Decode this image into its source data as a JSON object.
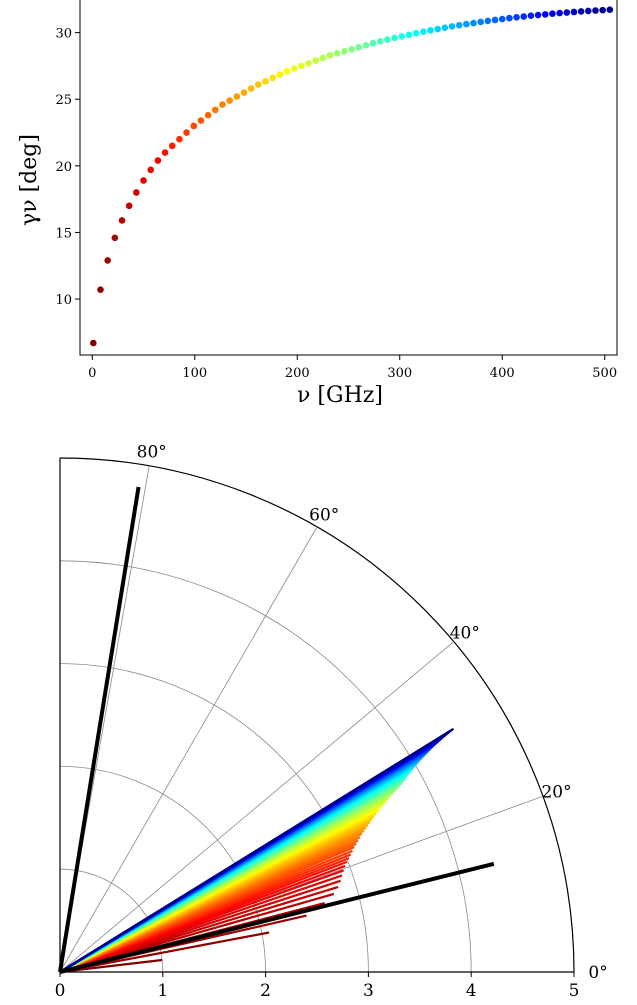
{
  "chart_data": [
    {
      "type": "scatter",
      "title": "",
      "xlabel": "ν      [GHz]",
      "ylabel": "γν  [deg]",
      "xlim": [
        -12,
        512
      ],
      "ylim": [
        5.8,
        32.6
      ],
      "xticks": [
        0,
        100,
        200,
        300,
        400,
        500
      ],
      "yticks": [
        10,
        15,
        20,
        25,
        30
      ],
      "colormap": "jet (reversed: low ν red, high ν blue)",
      "x": [
        1,
        8,
        15,
        22,
        29,
        36,
        43,
        50,
        57,
        64,
        71,
        78,
        85,
        92,
        99,
        106,
        113,
        120,
        127,
        134,
        141,
        148,
        155,
        162,
        169,
        176,
        183,
        190,
        197,
        204,
        211,
        218,
        225,
        232,
        239,
        246,
        253,
        260,
        267,
        274,
        281,
        288,
        295,
        302,
        309,
        316,
        323,
        330,
        337,
        344,
        351,
        358,
        365,
        372,
        379,
        386,
        393,
        400,
        407,
        414,
        421,
        428,
        435,
        442,
        449,
        456,
        463,
        470,
        477,
        484,
        491,
        498,
        505
      ],
      "y": [
        6.7,
        10.7,
        12.9,
        14.6,
        15.9,
        17.0,
        18.0,
        18.9,
        19.7,
        20.4,
        21.0,
        21.5,
        22.0,
        22.5,
        23.0,
        23.4,
        23.8,
        24.2,
        24.6,
        24.9,
        25.2,
        25.5,
        25.8,
        26.1,
        26.35,
        26.6,
        26.85,
        27.1,
        27.3,
        27.5,
        27.7,
        27.9,
        28.1,
        28.3,
        28.45,
        28.6,
        28.75,
        28.9,
        29.05,
        29.2,
        29.35,
        29.48,
        29.6,
        29.72,
        29.84,
        29.96,
        30.07,
        30.17,
        30.27,
        30.37,
        30.47,
        30.56,
        30.64,
        30.72,
        30.8,
        30.88,
        30.95,
        31.02,
        31.09,
        31.15,
        31.21,
        31.27,
        31.32,
        31.37,
        31.42,
        31.47,
        31.51,
        31.55,
        31.59,
        31.63,
        31.66,
        31.69,
        31.72
      ]
    },
    {
      "type": "polar",
      "title": "",
      "rlim": [
        0,
        5
      ],
      "rticks": [
        0,
        1,
        2,
        3,
        4,
        5
      ],
      "thetalim_deg": [
        0,
        90
      ],
      "thetaticks_deg": [
        0,
        20,
        40,
        60,
        80
      ],
      "rticks_labels": [
        "0",
        "1",
        "2",
        "3",
        "4",
        "5"
      ],
      "thetaticks_labels": [
        "0°",
        "20°",
        "40°",
        "60°",
        "80°"
      ],
      "reference_lines": [
        {
          "theta_deg": 14.0,
          "r": 4.35,
          "color": "#000000"
        },
        {
          "theta_deg": 80.8,
          "r": 4.78,
          "color": "#000000"
        }
      ],
      "colormap": "jet (reversed: low ν red, high ν blue)",
      "rays_theta_deg": [
        6.7,
        10.7,
        12.9,
        14.6,
        15.9,
        17.0,
        18.0,
        18.9,
        19.7,
        20.4,
        21.0,
        21.5,
        22.0,
        22.5,
        23.0,
        23.4,
        23.8,
        24.2,
        24.6,
        24.9,
        25.2,
        25.5,
        25.8,
        26.1,
        26.35,
        26.6,
        26.85,
        27.1,
        27.3,
        27.5,
        27.7,
        27.9,
        28.1,
        28.3,
        28.45,
        28.6,
        28.75,
        28.9,
        29.05,
        29.2,
        29.35,
        29.48,
        29.6,
        29.72,
        29.84,
        29.96,
        30.07,
        30.17,
        30.27,
        30.37,
        30.47,
        30.56,
        30.64,
        30.72,
        30.8,
        30.88,
        30.95,
        31.02,
        31.09,
        31.15,
        31.21,
        31.27,
        31.32,
        31.37,
        31.42,
        31.47,
        31.51,
        31.55,
        31.59,
        31.63,
        31.66,
        31.69,
        31.72
      ],
      "rays_r": [
        1.0,
        2.07,
        2.46,
        2.66,
        2.77,
        2.83,
        2.87,
        2.9,
        2.93,
        2.96,
        2.99,
        3.02,
        3.05,
        3.08,
        3.11,
        3.14,
        3.17,
        3.2,
        3.23,
        3.26,
        3.29,
        3.32,
        3.35,
        3.38,
        3.41,
        3.44,
        3.47,
        3.5,
        3.53,
        3.56,
        3.59,
        3.62,
        3.65,
        3.68,
        3.71,
        3.74,
        3.77,
        3.8,
        3.82,
        3.84,
        3.86,
        3.88,
        3.9,
        3.92,
        3.94,
        3.96,
        3.98,
        4.0,
        4.02,
        4.04,
        4.06,
        4.08,
        4.1,
        4.12,
        4.14,
        4.16,
        4.18,
        4.2,
        4.22,
        4.24,
        4.26,
        4.28,
        4.3,
        4.32,
        4.34,
        4.36,
        4.38,
        4.4,
        4.42,
        4.44,
        4.46,
        4.48,
        4.5
      ]
    }
  ]
}
